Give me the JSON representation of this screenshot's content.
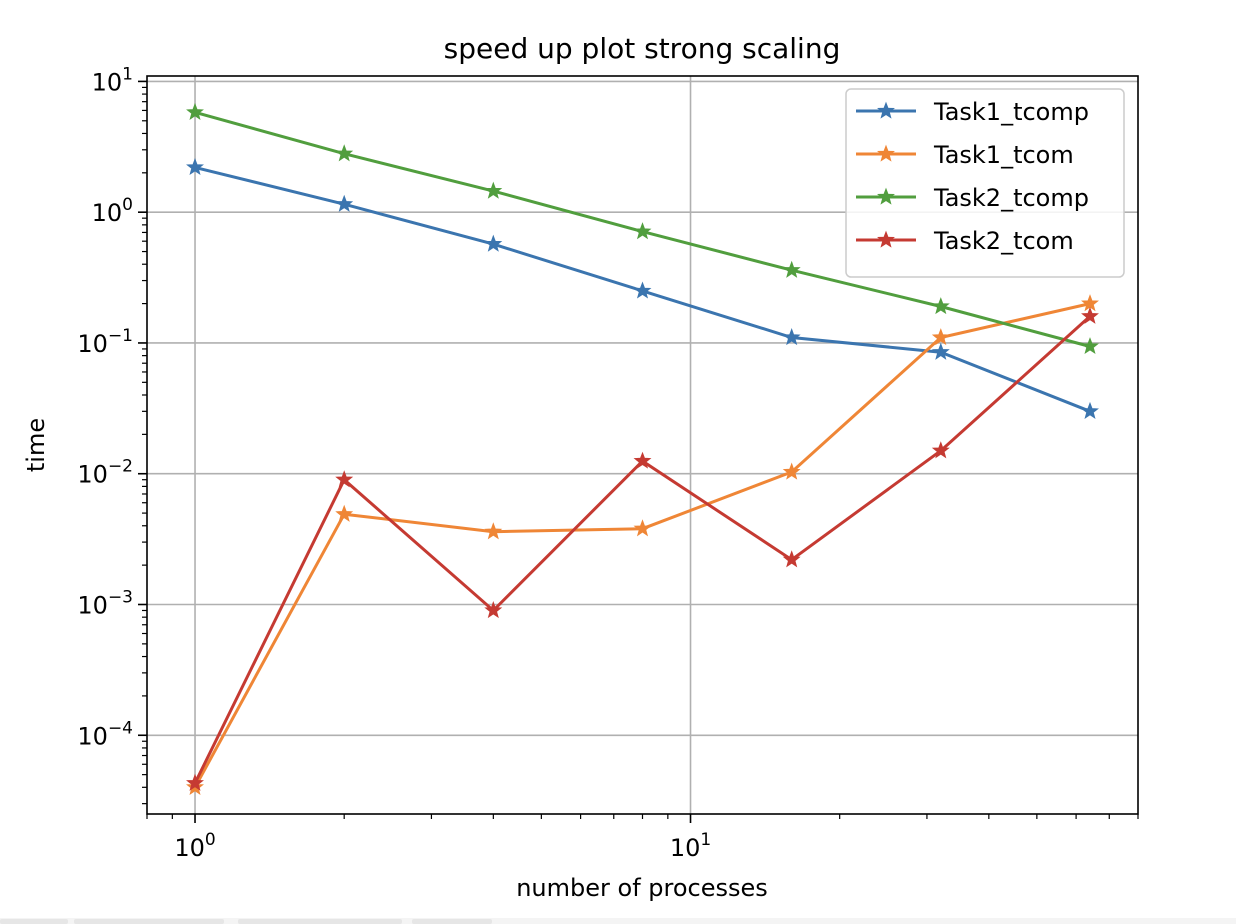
{
  "chart_data": {
    "type": "line",
    "title": "speed up plot strong scaling",
    "xlabel": "number of processes",
    "ylabel": "time",
    "xscale": "log",
    "yscale": "log",
    "xlim": [
      0.8,
      80
    ],
    "ylim": [
      2.5e-05,
      11
    ],
    "grid": true,
    "legend_position": "top-right",
    "marker": "star",
    "x_ticks": [
      {
        "value": 1,
        "base": "10",
        "exp": "0"
      },
      {
        "value": 10,
        "base": "10",
        "exp": "1"
      }
    ],
    "y_ticks": [
      {
        "value": 0.0001,
        "base": "10",
        "exp": "−4"
      },
      {
        "value": 0.001,
        "base": "10",
        "exp": "−3"
      },
      {
        "value": 0.01,
        "base": "10",
        "exp": "−2"
      },
      {
        "value": 0.1,
        "base": "10",
        "exp": "−1"
      },
      {
        "value": 1,
        "base": "10",
        "exp": "0"
      },
      {
        "value": 10,
        "base": "10",
        "exp": "1"
      }
    ],
    "x": [
      1,
      2,
      4,
      8,
      16,
      32,
      64
    ],
    "series": [
      {
        "name": "Task1_tcomp",
        "color": "#3b75af",
        "values": [
          2.2,
          1.15,
          0.57,
          0.25,
          0.11,
          0.085,
          0.03
        ]
      },
      {
        "name": "Task1_tcom",
        "color": "#ef8636",
        "values": [
          4e-05,
          0.0049,
          0.0036,
          0.0038,
          0.0103,
          0.11,
          0.2
        ]
      },
      {
        "name": "Task2_tcomp",
        "color": "#519e3e",
        "values": [
          5.8,
          2.8,
          1.45,
          0.71,
          0.36,
          0.19,
          0.094
        ]
      },
      {
        "name": "Task2_tcom",
        "color": "#c53a32",
        "values": [
          4.3e-05,
          0.009,
          0.0009,
          0.0125,
          0.0022,
          0.015,
          0.16
        ]
      }
    ]
  }
}
